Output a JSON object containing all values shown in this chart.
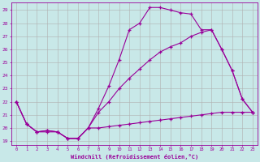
{
  "xlabel": "Windchill (Refroidissement éolien,°C)",
  "bg_color": "#c8e8e8",
  "line_color": "#990099",
  "grid_color": "#b0b0b0",
  "xlim": [
    -0.5,
    23.5
  ],
  "ylim": [
    18.7,
    29.6
  ],
  "xticks": [
    0,
    1,
    2,
    3,
    4,
    5,
    6,
    7,
    8,
    9,
    10,
    11,
    12,
    13,
    14,
    15,
    16,
    17,
    18,
    19,
    20,
    21,
    22,
    23
  ],
  "yticks": [
    19,
    20,
    21,
    22,
    23,
    24,
    25,
    26,
    27,
    28,
    29
  ],
  "line1_x": [
    0,
    1,
    2,
    3,
    4,
    5,
    6,
    7,
    8,
    9,
    10,
    11,
    12,
    13,
    14,
    15,
    16,
    17,
    18,
    19,
    20,
    21,
    22,
    23
  ],
  "line1_y": [
    22.0,
    20.3,
    19.7,
    19.7,
    19.7,
    19.2,
    19.2,
    20.0,
    21.5,
    23.2,
    25.2,
    27.5,
    28.0,
    29.2,
    29.2,
    29.0,
    28.8,
    28.7,
    27.5,
    27.5,
    26.0,
    24.4,
    22.2,
    21.2
  ],
  "line2_x": [
    0,
    1,
    2,
    3,
    4,
    5,
    6,
    7,
    8,
    9,
    10,
    11,
    12,
    13,
    14,
    15,
    16,
    17,
    18,
    19,
    20,
    21,
    22,
    23
  ],
  "line2_y": [
    22.0,
    20.3,
    19.7,
    19.8,
    19.7,
    19.2,
    19.2,
    20.0,
    21.2,
    22.0,
    23.0,
    23.8,
    24.5,
    25.2,
    25.8,
    26.2,
    26.5,
    27.0,
    27.3,
    27.5,
    26.0,
    24.4,
    22.2,
    21.2
  ],
  "line3_x": [
    0,
    1,
    2,
    3,
    4,
    5,
    6,
    7,
    8,
    9,
    10,
    11,
    12,
    13,
    14,
    15,
    16,
    17,
    18,
    19,
    20,
    21,
    22,
    23
  ],
  "line3_y": [
    22.0,
    20.3,
    19.7,
    19.8,
    19.7,
    19.2,
    19.2,
    20.0,
    20.0,
    20.1,
    20.2,
    20.3,
    20.4,
    20.5,
    20.6,
    20.7,
    20.8,
    20.9,
    21.0,
    21.1,
    21.2,
    21.2,
    21.2,
    21.2
  ]
}
